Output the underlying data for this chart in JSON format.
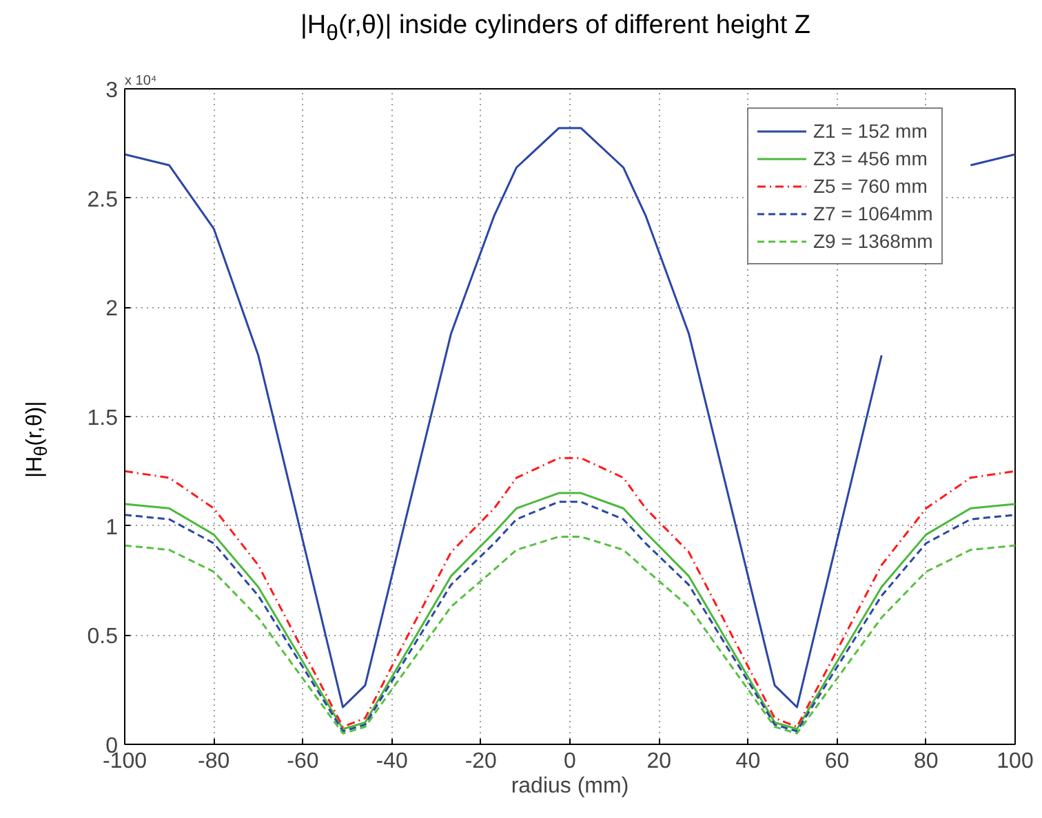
{
  "chart_data": {
    "type": "line",
    "title": "|H$_{θ}$(r,θ)| inside cylinders of different height Z",
    "xlabel": "radius (mm)",
    "ylabel": "|H$_{θ}$(r,θ)|",
    "annotations": [
      "x 10⁴"
    ],
    "x": [
      -100,
      -90,
      -80,
      -70,
      -51,
      -46,
      -26.7,
      -17,
      -12,
      -2.5,
      2.5,
      12,
      17,
      26.7,
      46,
      51,
      70,
      80,
      90,
      100
    ],
    "series": [
      {
        "name": "Z1 = 152 mm",
        "color": "#2b46a6",
        "line_style": "solid",
        "values": [
          2.7,
          2.65,
          2.36,
          1.78,
          0.17,
          0.27,
          1.88,
          2.42,
          2.64,
          2.82,
          2.82,
          2.64,
          2.42,
          1.88,
          0.27,
          0.17,
          1.78,
          null,
          2.65,
          2.7
        ]
      },
      {
        "name": "Z3 = 456 mm",
        "color": "#4cb83c",
        "line_style": "solid",
        "values": [
          1.1,
          1.08,
          0.96,
          0.72,
          0.07,
          0.1,
          0.77,
          0.97,
          1.08,
          1.15,
          1.15,
          1.08,
          0.97,
          0.77,
          0.1,
          0.07,
          0.72,
          0.96,
          1.08,
          1.1
        ]
      },
      {
        "name": "Z5 = 760 mm",
        "color": "#ff1a1a",
        "line_style": "dashdot",
        "values": [
          1.25,
          1.22,
          1.08,
          0.82,
          0.08,
          0.12,
          0.88,
          1.08,
          1.22,
          1.31,
          1.31,
          1.22,
          1.08,
          0.88,
          0.12,
          0.08,
          0.82,
          1.08,
          1.22,
          1.25
        ]
      },
      {
        "name": "Z7 = 1064mm",
        "color": "#2b46a6",
        "line_style": "dashed",
        "values": [
          1.05,
          1.03,
          0.92,
          0.68,
          0.06,
          0.09,
          0.73,
          0.92,
          1.03,
          1.11,
          1.11,
          1.03,
          0.92,
          0.73,
          0.09,
          0.06,
          0.68,
          0.92,
          1.03,
          1.05
        ]
      },
      {
        "name": "Z9 = 1368mm",
        "color": "#58c040",
        "line_style": "dashed",
        "values": [
          0.91,
          0.89,
          0.79,
          0.58,
          0.05,
          0.08,
          0.63,
          0.8,
          0.89,
          0.95,
          0.95,
          0.89,
          0.8,
          0.63,
          0.08,
          0.05,
          0.58,
          0.79,
          0.89,
          0.91
        ]
      }
    ],
    "xlim": [
      -100,
      100
    ],
    "xticks": [
      -100,
      -80,
      -60,
      -40,
      -20,
      0,
      20,
      40,
      60,
      80,
      100
    ],
    "ylim": [
      0,
      3
    ],
    "yticks": [
      0,
      0.5,
      1,
      1.5,
      2,
      2.5,
      3
    ],
    "grid": true,
    "legend": "top right"
  }
}
